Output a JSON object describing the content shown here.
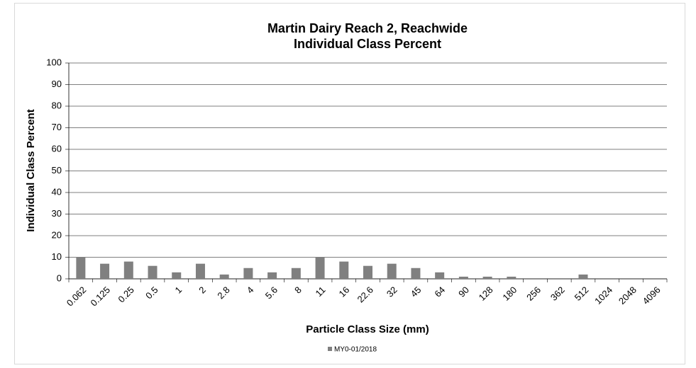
{
  "chart_data": {
    "type": "bar",
    "title": "Martin Dairy Reach 2, Reachwide",
    "subtitle": "Individual Class Percent",
    "x_label": "Particle Class Size (mm)",
    "y_label": "Individual Class Percent",
    "categories": [
      "0.062",
      "0.125",
      "0.25",
      "0.5",
      "1",
      "2",
      "2.8",
      "4",
      "5.6",
      "8",
      "11",
      "16",
      "22.6",
      "32",
      "45",
      "64",
      "90",
      "128",
      "180",
      "256",
      "362",
      "512",
      "1024",
      "2048",
      "4096"
    ],
    "series": [
      {
        "name": "MY0-01/2018",
        "color": "#808080",
        "values": [
          10,
          7,
          8,
          6,
          3,
          7,
          2,
          5,
          3,
          5,
          10,
          8,
          6,
          7,
          5,
          3,
          1,
          1,
          1,
          0,
          0,
          2,
          0,
          0,
          0
        ]
      }
    ],
    "ylim": [
      0,
      100
    ],
    "yticks": [
      0,
      10,
      20,
      30,
      40,
      50,
      60,
      70,
      80,
      90,
      100
    ],
    "grid": true,
    "legend": "bottom"
  }
}
